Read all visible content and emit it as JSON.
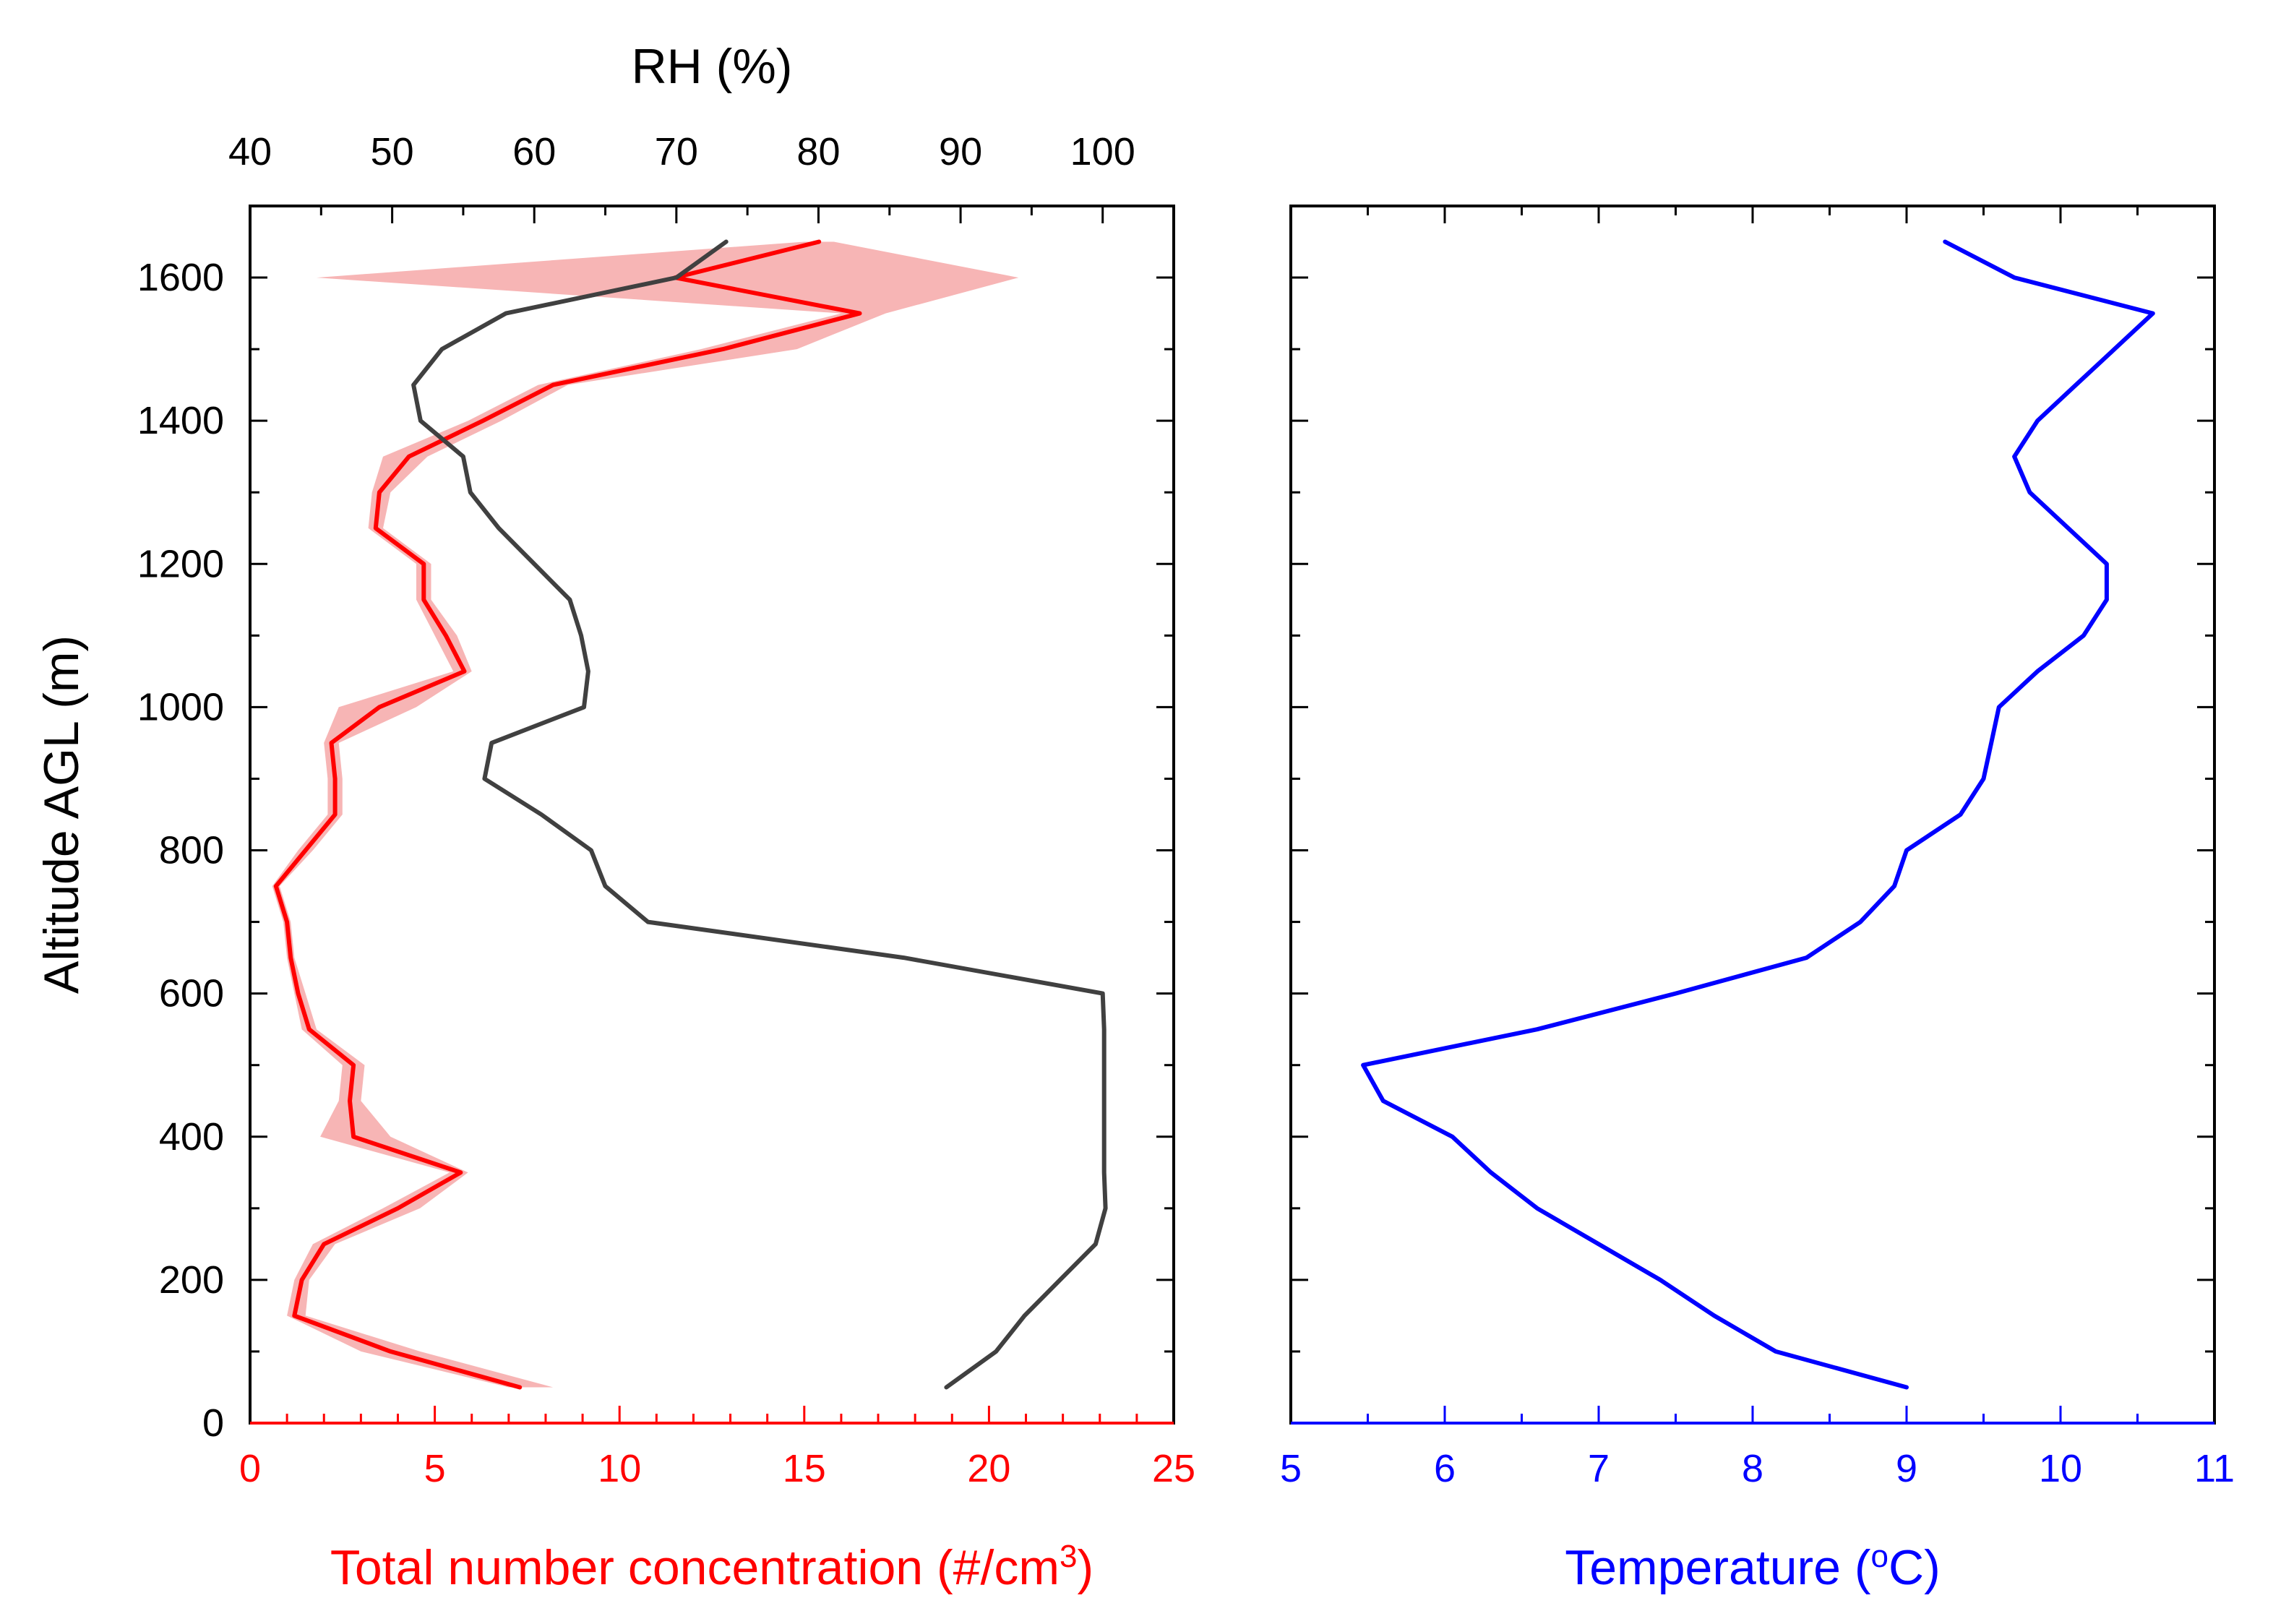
{
  "chart_data": [
    {
      "type": "line",
      "ylabel": "Altitude AGL (m)",
      "ylim": [
        0,
        1700
      ],
      "y_ticks": [
        "0",
        "200",
        "400",
        "600",
        "800",
        "1000",
        "1200",
        "1400",
        "1600"
      ],
      "x_bottom": {
        "label_main": "Total number concentration (#/cm",
        "label_sup": "3",
        "label_end": ")",
        "range": [
          0,
          25
        ],
        "ticks": [
          "0",
          "5",
          "10",
          "15",
          "20",
          "25"
        ],
        "color": "#ff0000"
      },
      "x_top": {
        "label": "RH (%)",
        "range": [
          40,
          105
        ],
        "ticks": [
          "40",
          "50",
          "60",
          "70",
          "80",
          "90",
          "100"
        ],
        "color": "#000000"
      },
      "series": [
        {
          "axis": "bottom",
          "color": "#ff0000",
          "band_color": "#f7b5b5",
          "points": [
            {
              "y": 50,
              "x": 7.3,
              "lo": 7.0,
              "hi": 8.2
            },
            {
              "y": 100,
              "x": 3.8,
              "lo": 3.0,
              "hi": 4.6
            },
            {
              "y": 150,
              "x": 1.2,
              "lo": 1.0,
              "hi": 1.5
            },
            {
              "y": 200,
              "x": 1.4,
              "lo": 1.2,
              "hi": 1.6
            },
            {
              "y": 250,
              "x": 2.0,
              "lo": 1.7,
              "hi": 2.3
            },
            {
              "y": 300,
              "x": 4.0,
              "lo": 3.6,
              "hi": 4.6
            },
            {
              "y": 350,
              "x": 5.7,
              "lo": 5.4,
              "hi": 5.9
            },
            {
              "y": 400,
              "x": 2.8,
              "lo": 1.9,
              "hi": 3.8
            },
            {
              "y": 450,
              "x": 2.7,
              "lo": 2.4,
              "hi": 3.0
            },
            {
              "y": 500,
              "x": 2.8,
              "lo": 2.5,
              "hi": 3.1
            },
            {
              "y": 550,
              "x": 1.6,
              "lo": 1.4,
              "hi": 1.8
            },
            {
              "y": 600,
              "x": 1.3,
              "lo": 1.2,
              "hi": 1.5
            },
            {
              "y": 650,
              "x": 1.1,
              "lo": 1.0,
              "hi": 1.2
            },
            {
              "y": 700,
              "x": 1.0,
              "lo": 0.9,
              "hi": 1.1
            },
            {
              "y": 750,
              "x": 0.7,
              "lo": 0.6,
              "hi": 0.8
            },
            {
              "y": 800,
              "x": 1.5,
              "lo": 1.3,
              "hi": 1.7
            },
            {
              "y": 850,
              "x": 2.3,
              "lo": 2.1,
              "hi": 2.5
            },
            {
              "y": 900,
              "x": 2.3,
              "lo": 2.1,
              "hi": 2.5
            },
            {
              "y": 950,
              "x": 2.2,
              "lo": 2.0,
              "hi": 2.4
            },
            {
              "y": 1000,
              "x": 3.5,
              "lo": 2.4,
              "hi": 4.5
            },
            {
              "y": 1050,
              "x": 5.8,
              "lo": 5.5,
              "hi": 6.0
            },
            {
              "y": 1100,
              "x": 5.3,
              "lo": 5.0,
              "hi": 5.6
            },
            {
              "y": 1150,
              "x": 4.7,
              "lo": 4.5,
              "hi": 4.9
            },
            {
              "y": 1200,
              "x": 4.7,
              "lo": 4.5,
              "hi": 4.9
            },
            {
              "y": 1250,
              "x": 3.4,
              "lo": 3.2,
              "hi": 3.6
            },
            {
              "y": 1300,
              "x": 3.5,
              "lo": 3.3,
              "hi": 3.8
            },
            {
              "y": 1350,
              "x": 4.3,
              "lo": 3.6,
              "hi": 4.8
            },
            {
              "y": 1400,
              "x": 6.3,
              "lo": 5.9,
              "hi": 6.8
            },
            {
              "y": 1450,
              "x": 8.2,
              "lo": 7.8,
              "hi": 8.6
            },
            {
              "y": 1500,
              "x": 12.8,
              "lo": 12.2,
              "hi": 14.8
            },
            {
              "y": 1550,
              "x": 16.5,
              "lo": 16.0,
              "hi": 17.2
            },
            {
              "y": 1600,
              "x": 11.5,
              "lo": 1.8,
              "hi": 20.8
            },
            {
              "y": 1650,
              "x": 15.4,
              "lo": 15.0,
              "hi": 15.8
            }
          ]
        },
        {
          "axis": "top",
          "color": "#404040",
          "points": [
            {
              "y": 50,
              "x": 89.0
            },
            {
              "y": 100,
              "x": 92.5
            },
            {
              "y": 150,
              "x": 94.5
            },
            {
              "y": 200,
              "x": 97.0
            },
            {
              "y": 250,
              "x": 99.5
            },
            {
              "y": 300,
              "x": 100.2
            },
            {
              "y": 350,
              "x": 100.1
            },
            {
              "y": 400,
              "x": 100.1
            },
            {
              "y": 450,
              "x": 100.1
            },
            {
              "y": 500,
              "x": 100.1
            },
            {
              "y": 550,
              "x": 100.1
            },
            {
              "y": 600,
              "x": 100.0
            },
            {
              "y": 650,
              "x": 86.0
            },
            {
              "y": 700,
              "x": 68.0
            },
            {
              "y": 750,
              "x": 65.0
            },
            {
              "y": 800,
              "x": 64.0
            },
            {
              "y": 850,
              "x": 60.5
            },
            {
              "y": 900,
              "x": 56.5
            },
            {
              "y": 950,
              "x": 57.0
            },
            {
              "y": 1000,
              "x": 63.5
            },
            {
              "y": 1050,
              "x": 63.8
            },
            {
              "y": 1100,
              "x": 63.3
            },
            {
              "y": 1150,
              "x": 62.5
            },
            {
              "y": 1200,
              "x": 60.0
            },
            {
              "y": 1250,
              "x": 57.5
            },
            {
              "y": 1300,
              "x": 55.5
            },
            {
              "y": 1350,
              "x": 55.0
            },
            {
              "y": 1400,
              "x": 52.0
            },
            {
              "y": 1450,
              "x": 51.5
            },
            {
              "y": 1500,
              "x": 53.5
            },
            {
              "y": 1550,
              "x": 58.0
            },
            {
              "y": 1600,
              "x": 70.0
            },
            {
              "y": 1650,
              "x": 73.5
            }
          ]
        }
      ]
    },
    {
      "type": "line",
      "ylim": [
        0,
        1700
      ],
      "x_bottom": {
        "label_main": "Temperature (",
        "label_sup": "o",
        "label_end": "C)",
        "range": [
          5,
          11
        ],
        "ticks": [
          "5",
          "6",
          "7",
          "8",
          "9",
          "10",
          "11"
        ],
        "color": "#0000ff"
      },
      "series": [
        {
          "axis": "bottom",
          "color": "#0000ff",
          "points": [
            {
              "y": 50,
              "x": 9.0
            },
            {
              "y": 100,
              "x": 8.15
            },
            {
              "y": 150,
              "x": 7.75
            },
            {
              "y": 200,
              "x": 7.4
            },
            {
              "y": 250,
              "x": 7.0
            },
            {
              "y": 300,
              "x": 6.6
            },
            {
              "y": 350,
              "x": 6.3
            },
            {
              "y": 400,
              "x": 6.05
            },
            {
              "y": 450,
              "x": 5.6
            },
            {
              "y": 500,
              "x": 5.47
            },
            {
              "y": 550,
              "x": 6.6
            },
            {
              "y": 600,
              "x": 7.5
            },
            {
              "y": 650,
              "x": 8.35
            },
            {
              "y": 700,
              "x": 8.7
            },
            {
              "y": 750,
              "x": 8.92
            },
            {
              "y": 800,
              "x": 9.0
            },
            {
              "y": 850,
              "x": 9.35
            },
            {
              "y": 900,
              "x": 9.5
            },
            {
              "y": 950,
              "x": 9.55
            },
            {
              "y": 1000,
              "x": 9.6
            },
            {
              "y": 1050,
              "x": 9.85
            },
            {
              "y": 1100,
              "x": 10.15
            },
            {
              "y": 1150,
              "x": 10.3
            },
            {
              "y": 1200,
              "x": 10.3
            },
            {
              "y": 1250,
              "x": 10.05
            },
            {
              "y": 1300,
              "x": 9.8
            },
            {
              "y": 1350,
              "x": 9.7
            },
            {
              "y": 1400,
              "x": 9.85
            },
            {
              "y": 1450,
              "x": 10.1
            },
            {
              "y": 1500,
              "x": 10.35
            },
            {
              "y": 1550,
              "x": 10.6
            },
            {
              "y": 1600,
              "x": 9.7
            },
            {
              "y": 1650,
              "x": 9.25
            }
          ]
        }
      ]
    }
  ]
}
